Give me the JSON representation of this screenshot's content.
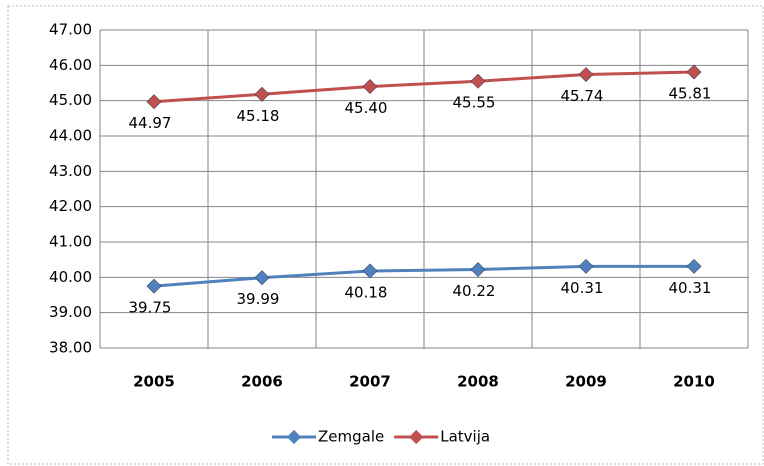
{
  "chart_data": {
    "type": "line",
    "categories": [
      "2005",
      "2006",
      "2007",
      "2008",
      "2009",
      "2010"
    ],
    "series": [
      {
        "name": "Zemgale",
        "color": "#4f81bd",
        "values": [
          39.75,
          39.99,
          40.18,
          40.22,
          40.31,
          40.31
        ],
        "value_labels": [
          "39.75",
          "39.99",
          "40.18",
          "40.22",
          "40.31",
          "40.31"
        ]
      },
      {
        "name": "Latvija",
        "color": "#c0504d",
        "values": [
          44.97,
          45.18,
          45.4,
          45.55,
          45.74,
          45.81
        ],
        "value_labels": [
          "44.97",
          "45.18",
          "45.40",
          "45.55",
          "45.74",
          "45.81"
        ]
      }
    ],
    "ylim": [
      38,
      47
    ],
    "yticks": [
      {
        "value": 38,
        "label": "38.00"
      },
      {
        "value": 39,
        "label": "39.00"
      },
      {
        "value": 40,
        "label": "40.00"
      },
      {
        "value": 41,
        "label": "41.00"
      },
      {
        "value": 42,
        "label": "42.00"
      },
      {
        "value": 43,
        "label": "43.00"
      },
      {
        "value": 44,
        "label": "44.00"
      },
      {
        "value": 45,
        "label": "45.00"
      },
      {
        "value": 46,
        "label": "46.00"
      },
      {
        "value": 47,
        "label": "47.00"
      }
    ],
    "grid": true,
    "legend": "bottom"
  }
}
